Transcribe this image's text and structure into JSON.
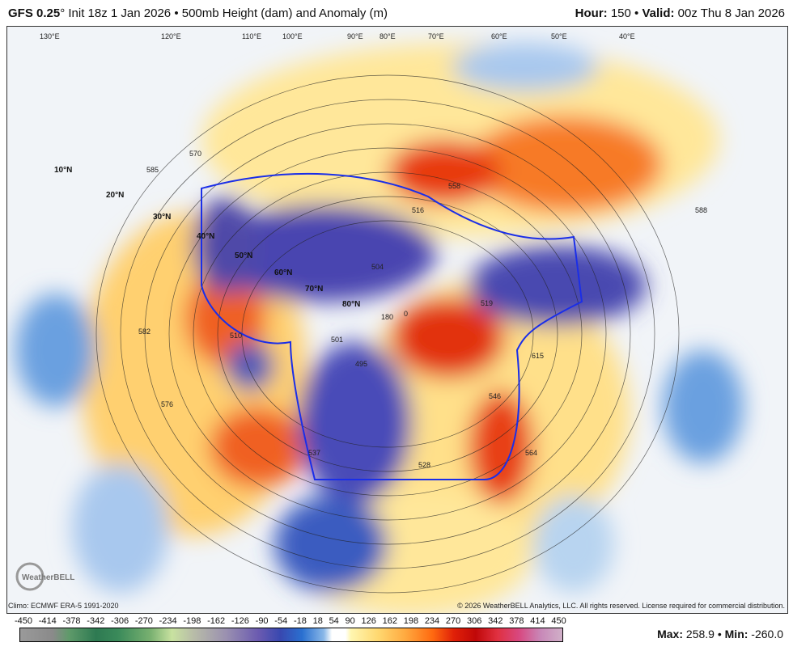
{
  "header": {
    "model": "GFS 0.25",
    "degree": "°",
    "init": "Init 18z 1 Jan 2026",
    "sep": "•",
    "product": "500mb Height (dam) and Anomaly (m)",
    "hour_label": "Hour:",
    "hour": "150",
    "valid_label": "Valid:",
    "valid": "00z Thu 8 Jan 2026"
  },
  "map": {
    "latitude_labels": [
      "10°N",
      "20°N",
      "30°N",
      "40°N",
      "50°N",
      "60°N",
      "70°N",
      "80°N"
    ],
    "longitude_labels": [
      "130°E",
      "120°E",
      "110°E",
      "100°E",
      "90°E",
      "80°E",
      "70°E",
      "60°E",
      "50°E",
      "40°E"
    ],
    "contour_labels": [
      "570",
      "585",
      "582",
      "576",
      "516",
      "558",
      "504",
      "510",
      "519",
      "501",
      "495",
      "528",
      "537",
      "564",
      "615",
      "546",
      "588",
      "180",
      "0"
    ],
    "logo": "WeatherBELL",
    "climo": "Climo: ECMWF ERA-5 1991-2020",
    "copyright": "© 2026 WeatherBELL Analytics, LLC. All rights reserved. License required for commercial distribution."
  },
  "colorbar": {
    "ticks": [
      "-450",
      "-414",
      "-378",
      "-342",
      "-306",
      "-270",
      "-234",
      "-198",
      "-162",
      "-126",
      "-90",
      "-54",
      "-18",
      "18",
      "54",
      "90",
      "126",
      "162",
      "198",
      "234",
      "270",
      "306",
      "342",
      "378",
      "414",
      "450"
    ]
  },
  "stats": {
    "max_label": "Max:",
    "max": "258.9",
    "min_label": "Min:",
    "min": "-260.0",
    "sep": "•"
  }
}
